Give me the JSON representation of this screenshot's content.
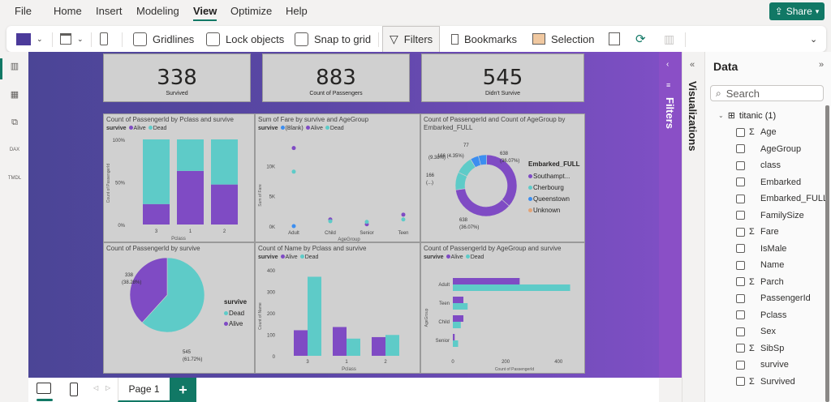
{
  "menu": {
    "items": [
      "File",
      "Home",
      "Insert",
      "Modeling",
      "View",
      "Optimize",
      "Help"
    ],
    "active": "View",
    "share_label": "Share"
  },
  "toolbar": {
    "gridlines_label": "Gridlines",
    "lock_label": "Lock objects",
    "snap_label": "Snap to grid",
    "filters_label": "Filters",
    "bookmarks_label": "Bookmarks",
    "selection_label": "Selection"
  },
  "kpis": [
    {
      "value": "338",
      "label": "Survived"
    },
    {
      "value": "883",
      "label": "Count of Passengers"
    },
    {
      "value": "545",
      "label": "Didn't Survive"
    }
  ],
  "colors": {
    "alive": "#7f4bc4",
    "dead": "#5ecbc8",
    "blank": "#3c8ef0",
    "unknown": "#e3a477",
    "accent": "#117865"
  },
  "chart_data": [
    {
      "id": "pclass-stacked",
      "type": "bar",
      "stacked": "100%",
      "title": "Count of PassengerId by Pclass and survive",
      "legend_title": "survive",
      "xlabel": "Pclass",
      "ylabel": "Count of PassengerId",
      "categories": [
        "3",
        "1",
        "2"
      ],
      "series": [
        {
          "name": "Alive",
          "values": [
            24,
            63,
            47
          ]
        },
        {
          "name": "Dead",
          "values": [
            76,
            37,
            53
          ]
        }
      ],
      "yticks": [
        "0%",
        "50%",
        "100%"
      ],
      "ylim": [
        0,
        100
      ]
    },
    {
      "id": "fare-scatter",
      "type": "scatter",
      "title": "Sum of Fare by survive and AgeGroup",
      "legend_title": "survive",
      "xlabel": "AgeGroup",
      "ylabel": "Sum of Fare",
      "categories": [
        "Adult",
        "Child",
        "Senior",
        "Teen"
      ],
      "series": [
        {
          "name": "(Blank)",
          "values": [
            0,
            null,
            null,
            null
          ]
        },
        {
          "name": "Alive",
          "values": [
            12900,
            1100,
            300,
            1900
          ]
        },
        {
          "name": "Dead",
          "values": [
            9000,
            800,
            700,
            1100
          ]
        }
      ],
      "yticks": [
        "0K",
        "5K",
        "10K"
      ],
      "ylim": [
        0,
        15000
      ]
    },
    {
      "id": "embarked-donut",
      "type": "pie",
      "donut": true,
      "title": "Count of PassengerId and Count of AgeGroup by Embarked_FULL",
      "legend_title": "Embarked_FULL",
      "legend": [
        "Southampt...",
        "Cherbourg",
        "Queenstown",
        "Unknown"
      ],
      "slices": [
        {
          "name": "Southampton",
          "value": 638,
          "label": "638 (36.07%)"
        },
        {
          "name": "Southampton",
          "value": 638,
          "label": "638 (36.07%)"
        },
        {
          "name": "Cherbourg",
          "value": 166,
          "label": "166 (...)"
        },
        {
          "name": "Cherbourg",
          "value": 166,
          "label": "166 (9.38%)"
        },
        {
          "name": "Queenstown",
          "value": 77,
          "label": "77 (4.35%)"
        },
        {
          "name": "Queenstown",
          "value": 77,
          "label": ""
        }
      ]
    },
    {
      "id": "survive-pie",
      "type": "pie",
      "title": "Count of PassengerId by survive",
      "legend_title": "survive",
      "legend": [
        "Dead",
        "Alive"
      ],
      "slices": [
        {
          "name": "Dead",
          "value": 545,
          "label": "545 (61.72%)"
        },
        {
          "name": "Alive",
          "value": 338,
          "label": "338 (38.28%)"
        }
      ]
    },
    {
      "id": "name-clustered",
      "type": "bar",
      "title": "Count of Name by Pclass and survive",
      "legend_title": "survive",
      "xlabel": "Pclass",
      "ylabel": "Count of Name",
      "categories": [
        "3",
        "1",
        "2"
      ],
      "series": [
        {
          "name": "Alive",
          "values": [
            119,
            134,
            87
          ]
        },
        {
          "name": "Dead",
          "values": [
            368,
            80,
            97
          ]
        }
      ],
      "yticks": [
        "0",
        "100",
        "200",
        "300",
        "400"
      ],
      "ylim": [
        0,
        400
      ]
    },
    {
      "id": "agegroup-hbar",
      "type": "bar",
      "orientation": "horizontal",
      "title": "Count of PassengerId by AgeGroup and survive",
      "legend_title": "survive",
      "xlabel": "Count of PassengerId",
      "ylabel": "AgeGroup",
      "categories": [
        "Adult",
        "Teen",
        "Child",
        "Senior"
      ],
      "series": [
        {
          "name": "Alive",
          "values": [
            253,
            40,
            40,
            7
          ]
        },
        {
          "name": "Dead",
          "values": [
            444,
            56,
            30,
            20
          ]
        }
      ],
      "xticks": [
        "0",
        "200",
        "400"
      ],
      "xlim": [
        0,
        470
      ]
    }
  ],
  "panes": {
    "filters_label": "Filters",
    "visualizations_label": "Visualizations",
    "data_label": "Data",
    "search_placeholder": "Search"
  },
  "data_tree": {
    "table": "titanic (1)",
    "fields": [
      {
        "name": "Age",
        "sum": true
      },
      {
        "name": "AgeGroup",
        "sum": false
      },
      {
        "name": "class",
        "sum": false
      },
      {
        "name": "Embarked",
        "sum": false
      },
      {
        "name": "Embarked_FULL",
        "sum": false
      },
      {
        "name": "FamilySize",
        "sum": false
      },
      {
        "name": "Fare",
        "sum": true
      },
      {
        "name": "IsMale",
        "sum": false
      },
      {
        "name": "Name",
        "sum": false
      },
      {
        "name": "Parch",
        "sum": true
      },
      {
        "name": "PassengerId",
        "sum": false
      },
      {
        "name": "Pclass",
        "sum": false
      },
      {
        "name": "Sex",
        "sum": false
      },
      {
        "name": "SibSp",
        "sum": true
      },
      {
        "name": "survive",
        "sum": false
      },
      {
        "name": "Survived",
        "sum": true
      }
    ]
  },
  "pages": {
    "tabs": [
      "Page 1"
    ],
    "add_label": "+"
  }
}
